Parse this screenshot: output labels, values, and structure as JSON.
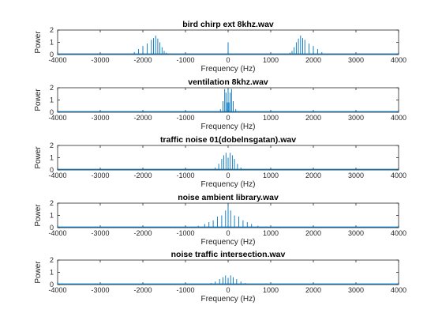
{
  "chart_data": [
    {
      "type": "line",
      "title": "bird chirp ext 8khz.wav",
      "xlabel": "Frequency (Hz)",
      "ylabel": "Power",
      "xlim": [
        -4000,
        4000
      ],
      "ylim": [
        0,
        2
      ],
      "xticks": [
        -4000,
        -3000,
        -2000,
        -1000,
        0,
        1000,
        2000,
        3000,
        4000
      ],
      "yticks": [
        0,
        1,
        2
      ],
      "line_color": "#0072BD",
      "peaks": [
        {
          "x": -2200,
          "y": 0.2
        },
        {
          "x": -2100,
          "y": 0.45
        },
        {
          "x": -2000,
          "y": 0.7
        },
        {
          "x": -1900,
          "y": 0.9
        },
        {
          "x": -1800,
          "y": 1.2
        },
        {
          "x": -1750,
          "y": 1.35
        },
        {
          "x": -1700,
          "y": 1.55
        },
        {
          "x": -1650,
          "y": 1.3
        },
        {
          "x": -1600,
          "y": 1.0
        },
        {
          "x": -1550,
          "y": 0.6
        },
        {
          "x": -1500,
          "y": 0.3
        },
        {
          "x": -1450,
          "y": 0.15
        },
        {
          "x": 0,
          "y": 1.0
        },
        {
          "x": 1450,
          "y": 0.15
        },
        {
          "x": 1500,
          "y": 0.3
        },
        {
          "x": 1550,
          "y": 0.6
        },
        {
          "x": 1600,
          "y": 1.0
        },
        {
          "x": 1650,
          "y": 1.3
        },
        {
          "x": 1700,
          "y": 1.55
        },
        {
          "x": 1750,
          "y": 1.35
        },
        {
          "x": 1800,
          "y": 1.2
        },
        {
          "x": 1900,
          "y": 0.9
        },
        {
          "x": 2000,
          "y": 0.7
        },
        {
          "x": 2100,
          "y": 0.45
        },
        {
          "x": 2200,
          "y": 0.2
        }
      ]
    },
    {
      "type": "line",
      "title": "ventilation 8khz.wav",
      "xlabel": "Frequency (Hz)",
      "ylabel": "Power",
      "xlim": [
        -4000,
        4000
      ],
      "ylim": [
        0,
        2
      ],
      "xticks": [
        -4000,
        -3000,
        -2000,
        -1000,
        0,
        1000,
        2000,
        3000,
        4000
      ],
      "yticks": [
        0,
        1,
        2
      ],
      "line_color": "#0072BD",
      "peaks": [
        {
          "x": -180,
          "y": 0.25
        },
        {
          "x": -120,
          "y": 0.9
        },
        {
          "x": -80,
          "y": 1.9
        },
        {
          "x": -50,
          "y": 1.6
        },
        {
          "x": -20,
          "y": 0.8
        },
        {
          "x": 0,
          "y": 2.0
        },
        {
          "x": 20,
          "y": 0.8
        },
        {
          "x": 50,
          "y": 1.6
        },
        {
          "x": 80,
          "y": 1.9
        },
        {
          "x": 120,
          "y": 0.9
        },
        {
          "x": 180,
          "y": 0.25
        }
      ]
    },
    {
      "type": "line",
      "title": "traffic noise 01(dobelnsgatan).wav",
      "xlabel": "Frequency (Hz)",
      "ylabel": "Power",
      "xlim": [
        -4000,
        4000
      ],
      "ylim": [
        0,
        2
      ],
      "xticks": [
        -4000,
        -3000,
        -2000,
        -1000,
        0,
        1000,
        2000,
        3000,
        4000
      ],
      "yticks": [
        0,
        1,
        2
      ],
      "line_color": "#0072BD",
      "peaks": [
        {
          "x": -300,
          "y": 0.2
        },
        {
          "x": -220,
          "y": 0.5
        },
        {
          "x": -150,
          "y": 0.9
        },
        {
          "x": -100,
          "y": 1.2
        },
        {
          "x": -50,
          "y": 1.4
        },
        {
          "x": 0,
          "y": 1.0
        },
        {
          "x": 50,
          "y": 1.4
        },
        {
          "x": 100,
          "y": 1.2
        },
        {
          "x": 150,
          "y": 0.9
        },
        {
          "x": 220,
          "y": 0.5
        },
        {
          "x": 300,
          "y": 0.2
        }
      ]
    },
    {
      "type": "line",
      "title": "noise ambient library.wav",
      "xlabel": "Frequency (Hz)",
      "ylabel": "Power",
      "xlim": [
        -4000,
        4000
      ],
      "ylim": [
        0,
        2
      ],
      "xticks": [
        -4000,
        -3000,
        -2000,
        -1000,
        0,
        1000,
        2000,
        3000,
        4000
      ],
      "yticks": [
        0,
        1,
        2
      ],
      "line_color": "#0072BD",
      "peaks": [
        {
          "x": -700,
          "y": 0.15
        },
        {
          "x": -550,
          "y": 0.3
        },
        {
          "x": -450,
          "y": 0.45
        },
        {
          "x": -350,
          "y": 0.6
        },
        {
          "x": -250,
          "y": 0.9
        },
        {
          "x": -150,
          "y": 1.0
        },
        {
          "x": -60,
          "y": 1.4
        },
        {
          "x": 0,
          "y": 1.9
        },
        {
          "x": 60,
          "y": 1.4
        },
        {
          "x": 150,
          "y": 1.0
        },
        {
          "x": 250,
          "y": 0.9
        },
        {
          "x": 350,
          "y": 0.6
        },
        {
          "x": 450,
          "y": 0.45
        },
        {
          "x": 550,
          "y": 0.3
        },
        {
          "x": 700,
          "y": 0.15
        }
      ]
    },
    {
      "type": "line",
      "title": "noise traffic intersection.wav",
      "xlabel": "Frequency (Hz)",
      "ylabel": "Power",
      "xlim": [
        -4000,
        4000
      ],
      "ylim": [
        0,
        2
      ],
      "xticks": [
        -4000,
        -3000,
        -2000,
        -1000,
        0,
        1000,
        2000,
        3000,
        4000
      ],
      "yticks": [
        0,
        1,
        2
      ],
      "line_color": "#0072BD",
      "peaks": [
        {
          "x": -400,
          "y": 0.12
        },
        {
          "x": -300,
          "y": 0.25
        },
        {
          "x": -200,
          "y": 0.45
        },
        {
          "x": -120,
          "y": 0.6
        },
        {
          "x": -60,
          "y": 0.75
        },
        {
          "x": 0,
          "y": 0.55
        },
        {
          "x": 60,
          "y": 0.75
        },
        {
          "x": 120,
          "y": 0.6
        },
        {
          "x": 200,
          "y": 0.45
        },
        {
          "x": 300,
          "y": 0.25
        },
        {
          "x": 400,
          "y": 0.12
        }
      ]
    }
  ]
}
